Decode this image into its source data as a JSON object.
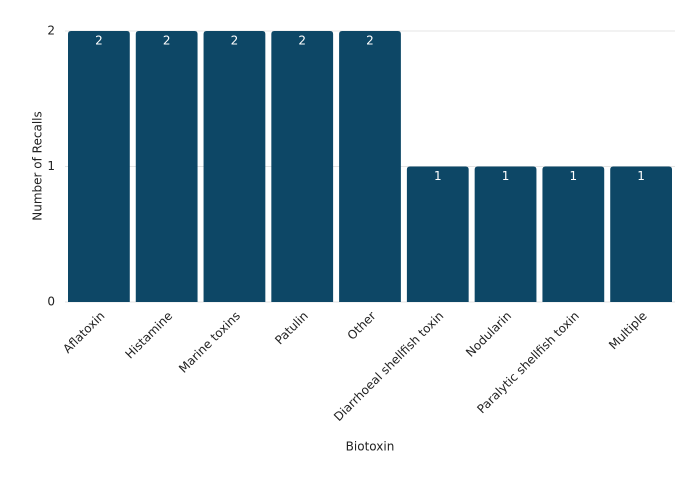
{
  "chart_data": {
    "type": "bar",
    "x_label": "Biotoxin",
    "y_label": "Number of Recalls",
    "categories": [
      "Aflatoxin",
      "Histamine",
      "Marine toxins",
      "Patulin",
      "Other",
      "Diarrhoeal shellfish toxin",
      "Nodularin",
      "Paralytic shellfish toxin",
      "Multiple"
    ],
    "values": [
      2,
      2,
      2,
      2,
      2,
      1,
      1,
      1,
      1
    ],
    "color": "#0d4766",
    "ylim": [
      0,
      2
    ],
    "yticks": [
      0,
      1,
      2
    ],
    "grid": true
  }
}
